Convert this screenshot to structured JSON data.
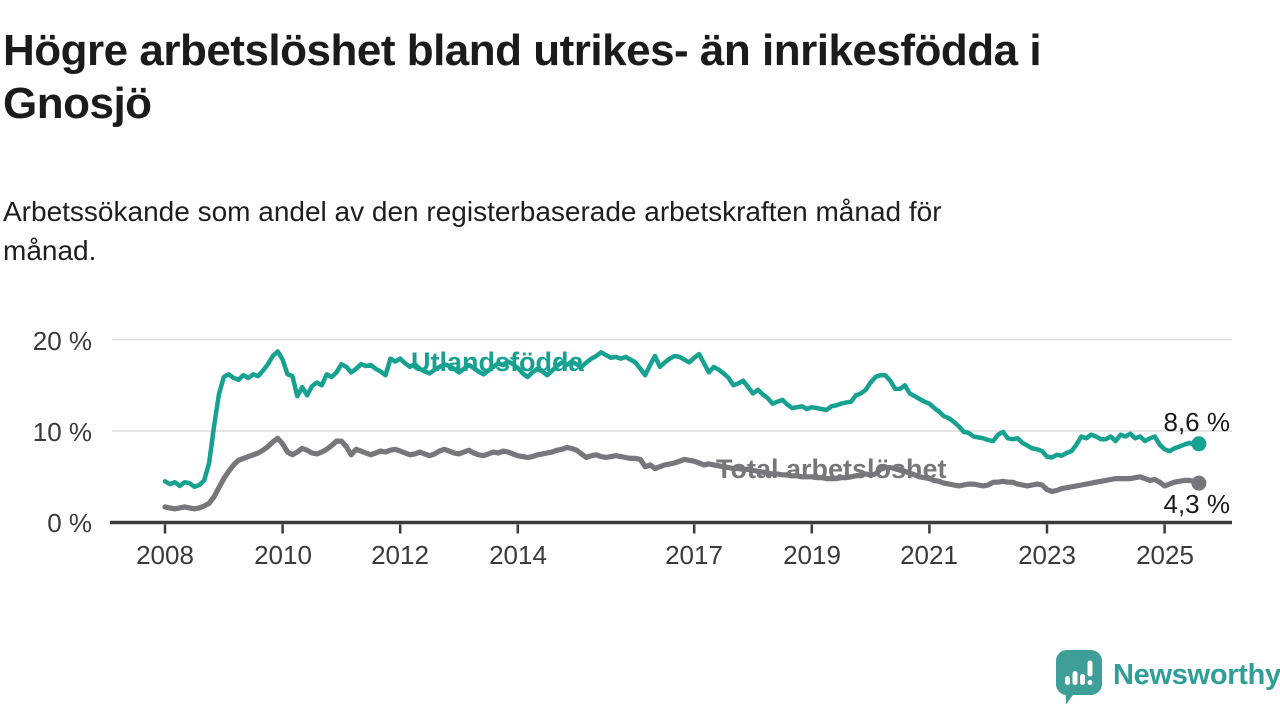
{
  "header": {
    "title": "Högre arbetslöshet bland utrikes- än inrikesfödda i\nGnosjö",
    "subtitle": "Arbetssökande som andel av den registerbaserade arbetskraften månad för\nmånad."
  },
  "chart_data": {
    "type": "line",
    "title": "Högre arbetslöshet bland utrikes- än inrikesfödda i Gnosjö",
    "subtitle": "Arbetssökande som andel av den registerbaserade arbetskraften månad för månad.",
    "unit": "%",
    "frequency": "monthly",
    "start": "2008-01",
    "end": "2025-08",
    "grid": "horizontal",
    "legend_position": "inline-labels",
    "ylim": [
      0,
      21.5
    ],
    "y_ticks": [
      0,
      10,
      20
    ],
    "y_tick_labels": [
      "0 %",
      "10 %",
      "20 %"
    ],
    "x_ticks": [
      2008,
      2010,
      2012,
      2014,
      2017,
      2019,
      2021,
      2023,
      2025
    ],
    "x_tick_labels": [
      "2008",
      "2010",
      "2012",
      "2014",
      "2017",
      "2019",
      "2021",
      "2023",
      "2025"
    ],
    "series": [
      {
        "name": "Utlandsfödda",
        "color": "#16a191",
        "end_label": "8,6 %",
        "end_value": 8.6,
        "values": [
          4.5,
          4.2,
          4.4,
          4.0,
          4.4,
          4.3,
          3.9,
          4.1,
          4.6,
          6.5,
          10.5,
          14.0,
          15.9,
          16.2,
          15.8,
          15.6,
          16.1,
          15.8,
          16.2,
          16.0,
          16.6,
          17.3,
          18.2,
          18.7,
          17.8,
          16.2,
          16.0,
          13.8,
          14.8,
          13.9,
          14.9,
          15.3,
          15.0,
          16.2,
          15.9,
          16.4,
          17.3,
          17.0,
          16.4,
          16.8,
          17.3,
          17.1,
          17.2,
          16.8,
          16.5,
          16.1,
          17.9,
          17.6,
          17.9,
          17.4,
          17.0,
          17.3,
          16.8,
          16.5,
          16.3,
          16.7,
          17.0,
          17.3,
          17.1,
          16.8,
          16.4,
          16.8,
          17.2,
          16.9,
          16.5,
          16.2,
          16.6,
          17.0,
          17.4,
          17.2,
          17.6,
          17.3,
          16.9,
          16.3,
          15.9,
          16.4,
          16.8,
          16.5,
          16.1,
          16.6,
          17.1,
          17.5,
          17.2,
          17.6,
          17.3,
          17.0,
          17.5,
          17.9,
          18.2,
          18.6,
          18.3,
          18.0,
          18.1,
          17.9,
          18.1,
          17.8,
          17.5,
          16.8,
          16.1,
          17.2,
          18.2,
          17.0,
          17.5,
          17.9,
          18.2,
          18.1,
          17.8,
          17.5,
          18.0,
          18.4,
          17.4,
          16.4,
          17.0,
          16.7,
          16.3,
          15.8,
          15.0,
          15.2,
          15.5,
          14.8,
          14.1,
          14.5,
          14.0,
          13.6,
          13.0,
          13.2,
          13.4,
          12.9,
          12.5,
          12.6,
          12.7,
          12.4,
          12.6,
          12.5,
          12.4,
          12.3,
          12.7,
          12.8,
          13.0,
          13.1,
          13.2,
          13.9,
          14.1,
          14.5,
          15.3,
          15.9,
          16.1,
          16.1,
          15.5,
          14.6,
          14.6,
          15.0,
          14.1,
          13.8,
          13.5,
          13.2,
          13.0,
          12.5,
          12.1,
          11.6,
          11.4,
          11.0,
          10.5,
          9.9,
          9.8,
          9.4,
          9.3,
          9.2,
          9.0,
          8.9,
          9.6,
          9.9,
          9.2,
          9.1,
          9.2,
          8.7,
          8.4,
          8.1,
          8.0,
          7.8,
          7.2,
          7.1,
          7.4,
          7.3,
          7.6,
          7.8,
          8.5,
          9.4,
          9.2,
          9.6,
          9.4,
          9.1,
          9.1,
          9.4,
          8.9,
          9.6,
          9.4,
          9.7,
          9.2,
          9.4,
          8.9,
          9.2,
          9.4,
          8.5,
          8.0,
          7.8,
          8.1,
          8.3,
          8.5,
          8.7,
          8.5,
          8.6
        ]
      },
      {
        "name": "Total arbetslöshet",
        "color": "#77767a",
        "end_label": "4,3 %",
        "end_value": 4.3,
        "values": [
          1.7,
          1.6,
          1.5,
          1.6,
          1.7,
          1.6,
          1.5,
          1.6,
          1.8,
          2.1,
          2.8,
          3.8,
          4.8,
          5.6,
          6.3,
          6.8,
          7.0,
          7.2,
          7.4,
          7.6,
          7.9,
          8.3,
          8.8,
          9.2,
          8.6,
          7.7,
          7.4,
          7.7,
          8.1,
          7.9,
          7.6,
          7.5,
          7.7,
          8.0,
          8.4,
          8.9,
          8.9,
          8.3,
          7.4,
          8.0,
          7.8,
          7.6,
          7.4,
          7.6,
          7.8,
          7.7,
          7.9,
          8.0,
          7.8,
          7.6,
          7.4,
          7.5,
          7.7,
          7.5,
          7.3,
          7.5,
          7.8,
          8.0,
          7.8,
          7.6,
          7.5,
          7.7,
          7.9,
          7.6,
          7.4,
          7.3,
          7.5,
          7.7,
          7.6,
          7.8,
          7.7,
          7.5,
          7.3,
          7.2,
          7.1,
          7.2,
          7.4,
          7.5,
          7.6,
          7.7,
          7.9,
          8.0,
          8.2,
          8.1,
          7.9,
          7.5,
          7.1,
          7.3,
          7.4,
          7.2,
          7.1,
          7.2,
          7.3,
          7.2,
          7.1,
          7.0,
          7.0,
          6.9,
          6.1,
          6.3,
          5.9,
          6.1,
          6.3,
          6.4,
          6.5,
          6.7,
          6.9,
          6.8,
          6.7,
          6.5,
          6.3,
          6.4,
          6.3,
          6.2,
          6.1,
          6.0,
          5.9,
          5.9,
          5.8,
          5.8,
          5.7,
          5.6,
          5.5,
          5.4,
          5.3,
          5.3,
          5.2,
          5.2,
          5.1,
          5.1,
          5.0,
          5.0,
          5.0,
          4.9,
          4.9,
          4.8,
          4.8,
          4.8,
          4.9,
          4.9,
          5.0,
          5.1,
          5.2,
          5.3,
          5.2,
          5.3,
          5.8,
          6.0,
          6.0,
          5.9,
          5.8,
          5.6,
          5.4,
          5.2,
          5.0,
          4.9,
          4.8,
          4.6,
          4.5,
          4.3,
          4.2,
          4.1,
          4.0,
          4.1,
          4.2,
          4.2,
          4.1,
          4.0,
          4.1,
          4.4,
          4.4,
          4.5,
          4.4,
          4.4,
          4.2,
          4.1,
          4.0,
          4.1,
          4.2,
          4.1,
          3.6,
          3.4,
          3.5,
          3.7,
          3.8,
          3.9,
          4.0,
          4.1,
          4.2,
          4.3,
          4.4,
          4.5,
          4.6,
          4.7,
          4.8,
          4.8,
          4.8,
          4.8,
          4.9,
          5.0,
          4.8,
          4.6,
          4.7,
          4.4,
          4.0,
          4.2,
          4.4,
          4.5,
          4.6,
          4.6,
          4.5,
          4.3
        ]
      }
    ],
    "style": {
      "grid_color": "#dcdcdc",
      "axis_color": "#3a3a3a",
      "tick_label_color": "#3a3a3a",
      "background": "#ffffff"
    }
  },
  "footer": {
    "brand": "Newsworthy",
    "brand_color": "#2f9e98",
    "icon": "speech-bubble-bar-chart-exclamation"
  }
}
